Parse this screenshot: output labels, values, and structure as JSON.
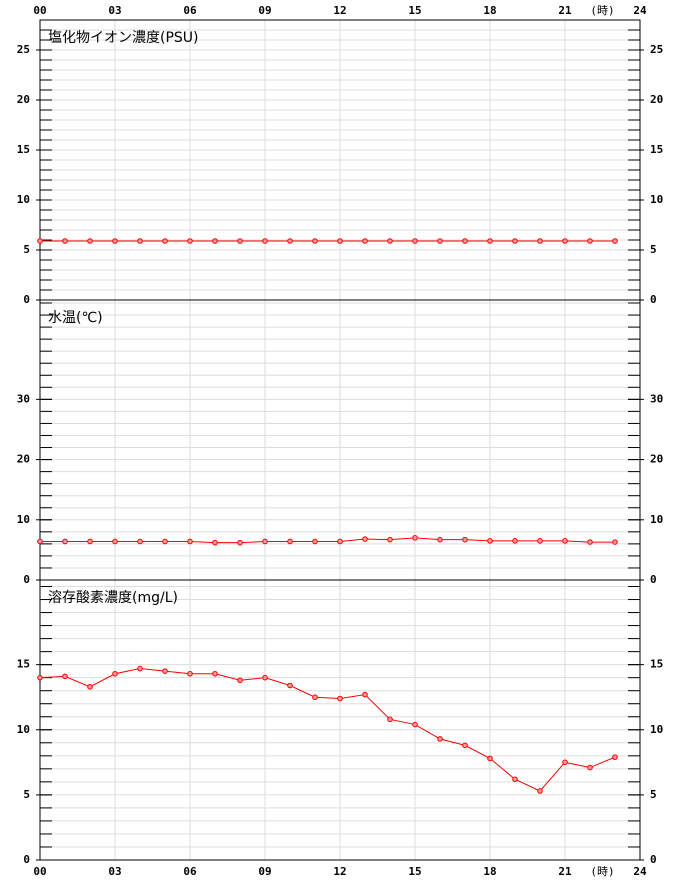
{
  "chart_data": [
    {
      "type": "line",
      "title": "塩化物イオン濃度(PSU)",
      "color": "#ff0000",
      "grid": true,
      "x_unit": "(時)",
      "xlim": [
        0,
        24
      ],
      "xticks": [
        {
          "value": 0,
          "label": "00"
        },
        {
          "value": 3,
          "label": "03"
        },
        {
          "value": 6,
          "label": "06"
        },
        {
          "value": 9,
          "label": "09"
        },
        12,
        15,
        18,
        21,
        24
      ],
      "ylim": [
        0,
        28
      ],
      "yticks": [
        0,
        5,
        10,
        15,
        20,
        25
      ],
      "x": [
        0,
        1,
        2,
        3,
        4,
        5,
        6,
        7,
        8,
        9,
        10,
        11,
        12,
        13,
        14,
        15,
        16,
        17,
        18,
        19,
        20,
        21,
        22,
        23
      ],
      "values": [
        5.9,
        5.9,
        5.9,
        5.9,
        5.9,
        5.9,
        5.9,
        5.9,
        5.9,
        5.9,
        5.9,
        5.9,
        5.9,
        5.9,
        5.9,
        5.9,
        5.9,
        5.9,
        5.9,
        5.9,
        5.9,
        5.9,
        5.9,
        5.9
      ]
    },
    {
      "type": "line",
      "title": "水温(℃)",
      "color": "#ff0000",
      "grid": true,
      "xlim": [
        0,
        24
      ],
      "xticks": [
        {
          "value": 0,
          "label": "00"
        },
        {
          "value": 3,
          "label": "03"
        },
        {
          "value": 6,
          "label": "06"
        },
        {
          "value": 9,
          "label": "09"
        },
        12,
        15,
        18,
        21,
        24
      ],
      "ylim": [
        0,
        46.5
      ],
      "yticks": [
        0,
        10,
        20,
        30
      ],
      "x": [
        0,
        1,
        2,
        3,
        4,
        5,
        6,
        7,
        8,
        9,
        10,
        11,
        12,
        13,
        14,
        15,
        16,
        17,
        18,
        19,
        20,
        21,
        22,
        23
      ],
      "values": [
        6.4,
        6.4,
        6.4,
        6.4,
        6.4,
        6.4,
        6.4,
        6.2,
        6.2,
        6.4,
        6.4,
        6.4,
        6.4,
        6.8,
        6.7,
        7.0,
        6.7,
        6.7,
        6.5,
        6.5,
        6.5,
        6.5,
        6.3,
        6.3
      ]
    },
    {
      "type": "line",
      "title": "溶存酸素濃度(mg/L)",
      "color": "#ff0000",
      "grid": true,
      "x_unit": "(時)",
      "xlim": [
        0,
        24
      ],
      "xticks": [
        {
          "value": 0,
          "label": "00"
        },
        {
          "value": 3,
          "label": "03"
        },
        {
          "value": 6,
          "label": "06"
        },
        {
          "value": 9,
          "label": "09"
        },
        12,
        15,
        18,
        21,
        24
      ],
      "ylim": [
        0,
        21.5
      ],
      "yticks": [
        0,
        5,
        10,
        15
      ],
      "x": [
        0,
        1,
        2,
        3,
        4,
        5,
        6,
        7,
        8,
        9,
        10,
        11,
        12,
        13,
        14,
        15,
        16,
        17,
        18,
        19,
        20,
        21,
        22,
        23
      ],
      "values": [
        14.0,
        14.1,
        13.3,
        14.3,
        14.7,
        14.5,
        14.3,
        14.3,
        13.8,
        14.0,
        13.4,
        12.5,
        12.4,
        12.7,
        10.8,
        10.4,
        9.3,
        8.8,
        7.8,
        6.2,
        5.3,
        7.5,
        7.1,
        7.9
      ]
    }
  ]
}
